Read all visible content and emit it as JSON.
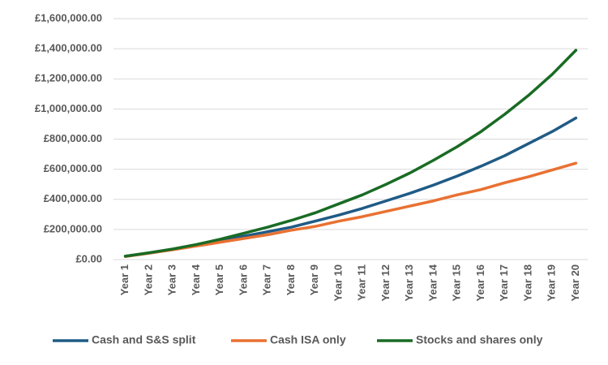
{
  "chart_data": {
    "type": "line",
    "categories": [
      "Year 1",
      "Year 2",
      "Year 3",
      "Year 4",
      "Year 5",
      "Year 6",
      "Year 7",
      "Year 8",
      "Year 9",
      "Year 10",
      "Year 11",
      "Year 12",
      "Year 13",
      "Year 14",
      "Year 15",
      "Year 16",
      "Year 17",
      "Year 18",
      "Year 19",
      "Year 20"
    ],
    "series": [
      {
        "name": "Cash and S&S split",
        "color": "#1f5b86",
        "values": [
          22000,
          43000,
          68000,
          95000,
          125000,
          155000,
          185000,
          215000,
          255000,
          295000,
          340000,
          390000,
          440000,
          495000,
          555000,
          620000,
          690000,
          770000,
          850000,
          940000
        ]
      },
      {
        "name": "Cash ISA only",
        "color": "#e97132",
        "values": [
          20000,
          42000,
          65000,
          90000,
          115000,
          140000,
          165000,
          195000,
          220000,
          255000,
          285000,
          320000,
          355000,
          390000,
          430000,
          465000,
          510000,
          550000,
          595000,
          640000
        ]
      },
      {
        "name": "Stocks and shares only",
        "color": "#196b24",
        "values": [
          22000,
          45000,
          70000,
          100000,
          135000,
          175000,
          215000,
          260000,
          310000,
          370000,
          430000,
          500000,
          575000,
          660000,
          750000,
          850000,
          965000,
          1090000,
          1230000,
          1390000
        ]
      }
    ],
    "ylim": [
      0,
      1600000
    ],
    "yticks": [
      {
        "value": 0,
        "label": "£0.00"
      },
      {
        "value": 200000,
        "label": "£200,000.00"
      },
      {
        "value": 400000,
        "label": "£400,000.00"
      },
      {
        "value": 600000,
        "label": "£600,000.00"
      },
      {
        "value": 800000,
        "label": "£800,000.00"
      },
      {
        "value": 1000000,
        "label": "£1,000,000.00"
      },
      {
        "value": 1200000,
        "label": "£1,200,000.00"
      },
      {
        "value": 1400000,
        "label": "£1,400,000.00"
      },
      {
        "value": 1600000,
        "label": "£1,600,000.00"
      }
    ],
    "grid": true,
    "legend": "bottom"
  }
}
